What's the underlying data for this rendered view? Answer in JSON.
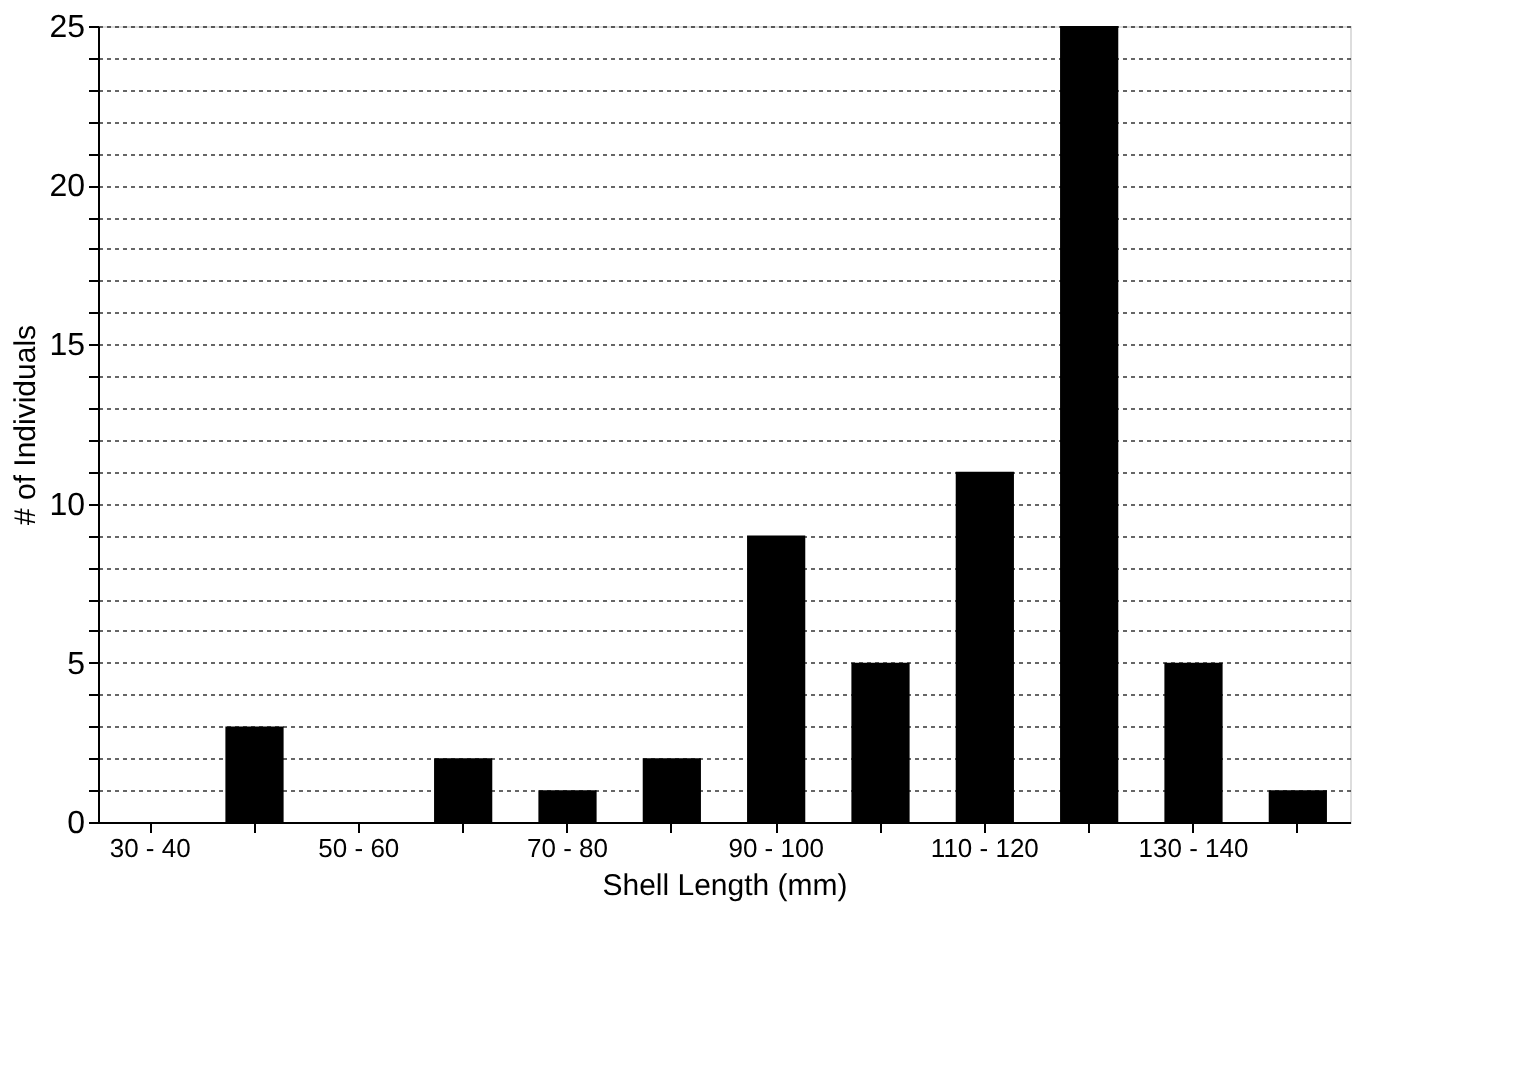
{
  "chart_data": {
    "type": "bar",
    "xlabel": "Shell Length (mm)",
    "ylabel": "# of Individuals",
    "categories": [
      "30 - 40",
      null,
      "50 - 60",
      null,
      "70 - 80",
      null,
      "90 - 100",
      null,
      "110 - 120",
      null,
      "130 - 140",
      null
    ],
    "values": [
      0,
      3,
      0,
      2,
      1,
      2,
      9,
      5,
      11,
      25,
      5,
      1
    ],
    "color": "#000000",
    "ylim": [
      0,
      25
    ],
    "yticks": [
      0,
      {
        "value": 1,
        "label": null
      },
      {
        "value": 2,
        "label": null
      },
      {
        "value": 3,
        "label": null
      },
      {
        "value": 4,
        "label": null
      },
      5,
      {
        "value": 6,
        "label": null
      },
      {
        "value": 7,
        "label": null
      },
      {
        "value": 8,
        "label": null
      },
      {
        "value": 9,
        "label": null
      },
      10,
      {
        "value": 11,
        "label": null
      },
      {
        "value": 12,
        "label": null
      },
      {
        "value": 13,
        "label": null
      },
      {
        "value": 14,
        "label": null
      },
      15,
      {
        "value": 16,
        "label": null
      },
      {
        "value": 17,
        "label": null
      },
      {
        "value": 18,
        "label": null
      },
      {
        "value": 19,
        "label": null
      },
      20,
      {
        "value": 21,
        "label": null
      },
      {
        "value": 22,
        "label": null
      },
      {
        "value": 23,
        "label": null
      },
      {
        "value": 24,
        "label": null
      },
      25
    ],
    "grid": "y"
  }
}
